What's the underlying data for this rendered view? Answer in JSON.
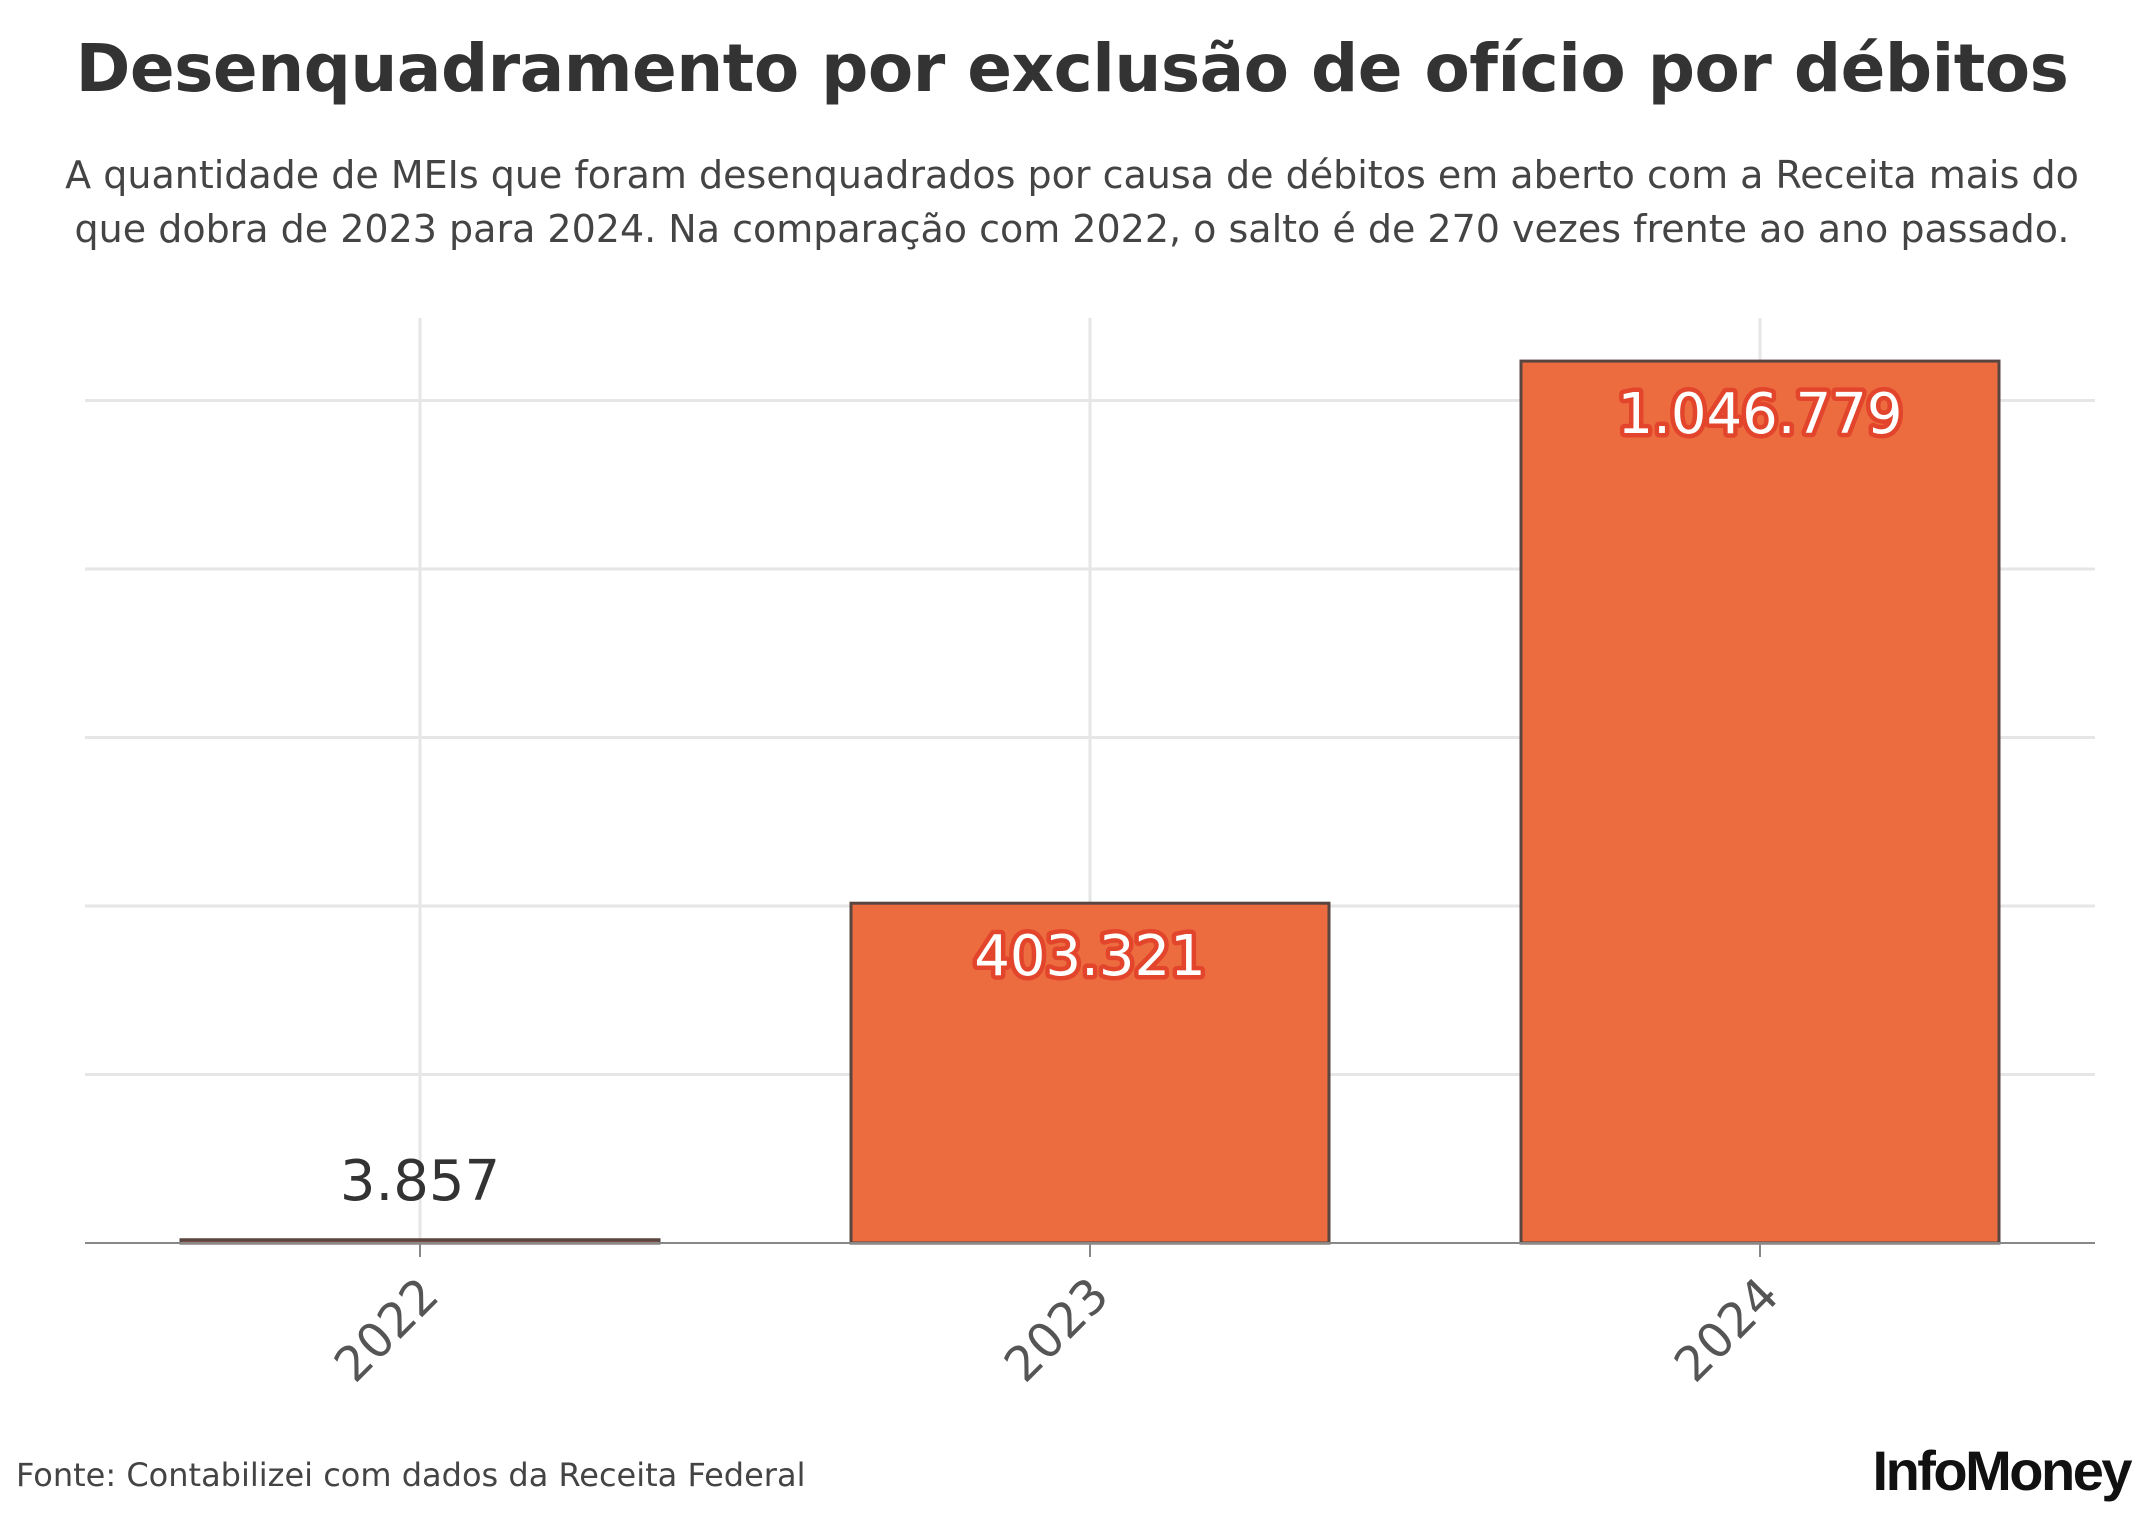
{
  "title": "Desenquadramento por exclusão de ofício por débitos",
  "subtitle": "A quantidade de MEIs que foram desenquadrados por causa de débitos em aberto com a Receita mais do que dobra de 2023 para 2024. Na comparação com 2022, o salto é de 270 vezes frente ao ano passado.",
  "source": "Fonte: Contabilizei com dados da Receita Federal",
  "logo_text": "InfoMoney",
  "colors": {
    "bar": "#ec6b3f",
    "bar_stroke": "#5a4640",
    "label_halo": "#e2452b",
    "grid": "#e6e6e6",
    "axis": "#888888",
    "text": "#333333"
  },
  "chart_data": {
    "type": "bar",
    "categories": [
      "2022",
      "2023",
      "2024"
    ],
    "values": [
      3857,
      403321,
      1046779
    ],
    "value_labels": [
      "3.857",
      "403.321",
      "1.046.779"
    ],
    "xlabel": "",
    "ylabel": "",
    "ylim": [
      0,
      1100000
    ],
    "y_gridlines": [
      200000,
      400000,
      600000,
      800000,
      1000000
    ],
    "grid": true,
    "y_tick_labels_visible": false,
    "x_tick_label_rotation": -45,
    "legend": "none"
  }
}
